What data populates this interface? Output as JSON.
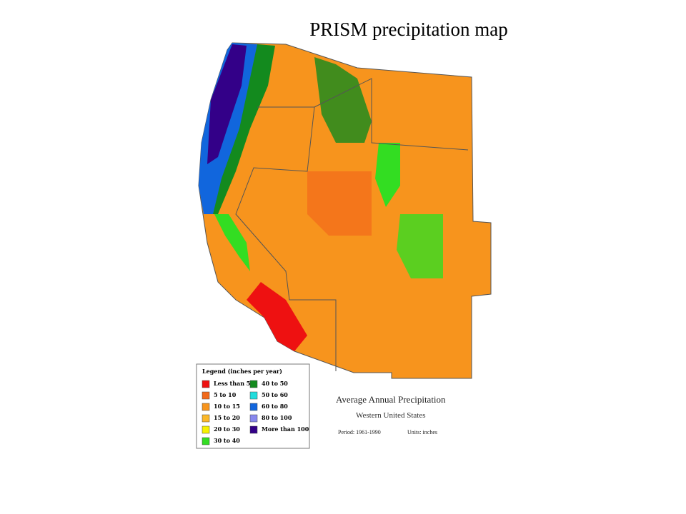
{
  "header": {
    "title": "PRISM precipitation map"
  },
  "map": {
    "title": "Average Annual Precipitation",
    "subtitle": "Western United States",
    "period": "Period: 1961-1990",
    "units": "Units: inches"
  },
  "legend": {
    "title": "Legend (inches per year)",
    "items": [
      {
        "label": "Less than 5",
        "color": "#ee1111"
      },
      {
        "label": "5 to 10",
        "color": "#f26a1b"
      },
      {
        "label": "10 to 15",
        "color": "#f7941d"
      },
      {
        "label": "15 to 20",
        "color": "#fbb829"
      },
      {
        "label": "20 to 30",
        "color": "#f6f100"
      },
      {
        "label": "30 to 40",
        "color": "#33dd22"
      },
      {
        "label": "40 to 50",
        "color": "#138a1e"
      },
      {
        "label": "50 to 60",
        "color": "#22dddd"
      },
      {
        "label": "60 to 80",
        "color": "#1166dd"
      },
      {
        "label": "80 to 100",
        "color": "#8888ee"
      },
      {
        "label": "More than 100",
        "color": "#330088"
      }
    ]
  }
}
